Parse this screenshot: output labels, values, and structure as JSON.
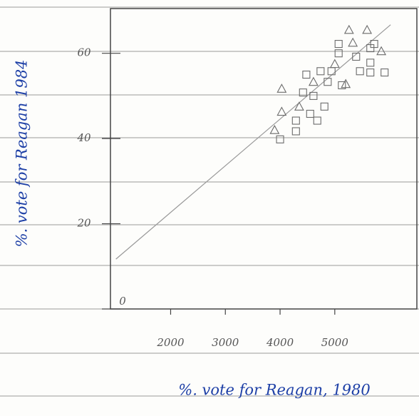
{
  "chart_data": {
    "type": "scatter",
    "x_label": "%. vote for Reagan, 1980",
    "y_label": "%. vote for Reagan 1984",
    "xlim": [
      900,
      6500
    ],
    "ylim": [
      0,
      70.5
    ],
    "xticks": [
      2000,
      3000,
      4000,
      5000
    ],
    "yticks": [
      0,
      20,
      40,
      60
    ],
    "grid": false,
    "color": "#6b6b6b",
    "x": [
      3900,
      4030,
      4000,
      4030,
      4290,
      4290,
      4350,
      4420,
      4550,
      4610,
      4680,
      4480,
      4740,
      4610,
      4810,
      4870,
      4940,
      5000,
      5130,
      5200,
      5070,
      5070,
      5260,
      5330,
      5390,
      5460,
      5590,
      5650,
      5650,
      5720,
      5850,
      5650,
      5910
    ],
    "values": [
      42.0,
      46.3,
      39.8,
      51.7,
      44.2,
      41.7,
      47.5,
      50.8,
      45.8,
      50.0,
      44.2,
      55.0,
      55.8,
      53.3,
      47.5,
      53.3,
      55.8,
      57.5,
      52.5,
      52.8,
      60.0,
      62.2,
      65.5,
      62.5,
      59.2,
      55.8,
      65.5,
      61.2,
      57.8,
      62.2,
      60.5,
      55.5,
      55.5
    ],
    "markers": [
      "triangle",
      "triangle",
      "square",
      "triangle",
      "square",
      "square",
      "triangle",
      "square",
      "square",
      "square",
      "square",
      "square",
      "square",
      "triangle",
      "square",
      "square",
      "square",
      "triangle",
      "square",
      "triangle",
      "square",
      "square",
      "triangle",
      "triangle",
      "square",
      "square",
      "triangle",
      "square",
      "square",
      "square",
      "triangle",
      "square",
      "square"
    ],
    "trend_line": {
      "x": [
        1000,
        6020
      ],
      "y": [
        11.7,
        66.7
      ]
    }
  }
}
